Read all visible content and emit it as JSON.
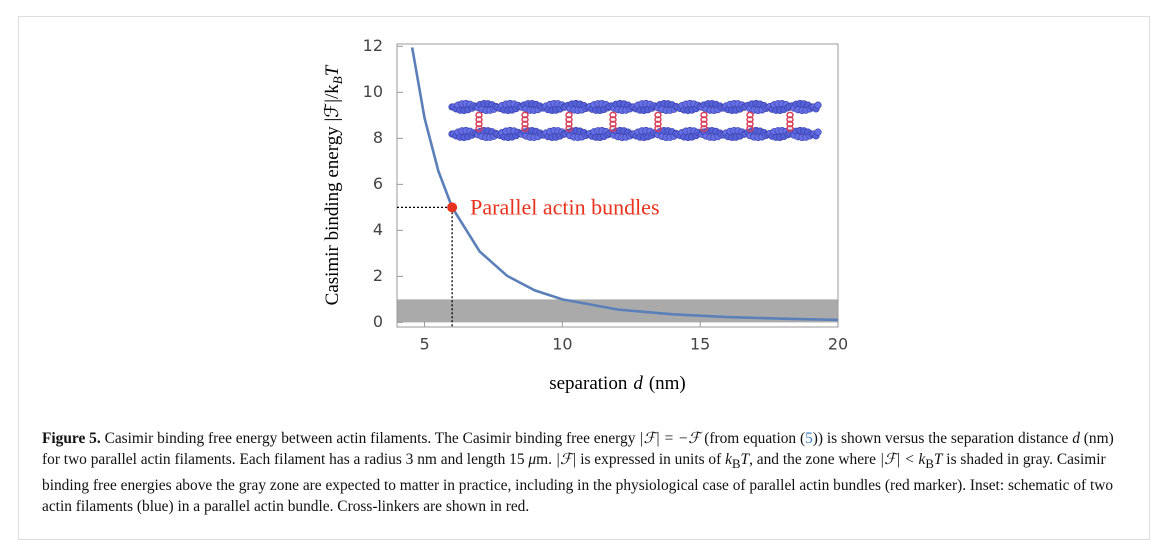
{
  "chart_data": {
    "type": "line",
    "x": [
      4.55,
      5,
      5.5,
      6,
      7,
      8,
      9,
      10,
      12,
      14,
      16,
      18,
      20
    ],
    "values": [
      11.95,
      8.88,
      6.58,
      5,
      3.08,
      2.02,
      1.39,
      1.0,
      0.56,
      0.35,
      0.23,
      0.16,
      0.11
    ],
    "color": "#5b7fb8",
    "xlim": [
      4,
      20
    ],
    "xticks": [
      5,
      10,
      15,
      20
    ],
    "ylim": [
      -0.2,
      12.1
    ],
    "yticks": [
      0,
      2,
      4,
      6,
      8,
      10,
      12
    ],
    "shaded_band": [
      0,
      1
    ],
    "band_color": "#aaaaaa",
    "marker": {
      "x": 6,
      "y": 5,
      "label": "Parallel actin bundles",
      "color": "#e8321e"
    },
    "xlabel_parts": [
      "separation",
      "d",
      "(nm)"
    ],
    "ylabel_parts": [
      "Casimir binding energy  |ℱ|/k",
      "B",
      "T"
    ]
  },
  "caption": {
    "label": "Figure 5.",
    "segments": [
      [
        " Casimir binding free energy between actin filaments. The Casimir binding free energy ",
        ""
      ],
      [
        "|ℱ| = −ℱ",
        "i"
      ],
      [
        " (from equation (",
        ""
      ],
      [
        "5",
        "link"
      ],
      [
        ")) is shown versus the separation distance ",
        ""
      ],
      [
        "d",
        "i"
      ],
      [
        " (nm) for two parallel actin filaments. Each filament has a radius 3 nm and length 15 ",
        ""
      ],
      [
        "μ",
        "i"
      ],
      [
        "m. ",
        ""
      ],
      [
        "|ℱ|",
        "i"
      ],
      [
        " is expressed in units of ",
        ""
      ],
      [
        "k",
        "i"
      ],
      [
        "B",
        "sub"
      ],
      [
        "T",
        "i"
      ],
      [
        ", and the zone where ",
        ""
      ],
      [
        "|ℱ| < k",
        "i"
      ],
      [
        "B",
        "sub"
      ],
      [
        "T",
        "i"
      ],
      [
        " is shaded in gray. Casimir binding free energies above the gray zone are expected to matter in practice, including in the physiological case of parallel actin bundles (red marker). Inset: schematic of two actin filaments (blue) in a parallel actin bundle. Cross-linkers are shown in red.",
        ""
      ]
    ]
  }
}
